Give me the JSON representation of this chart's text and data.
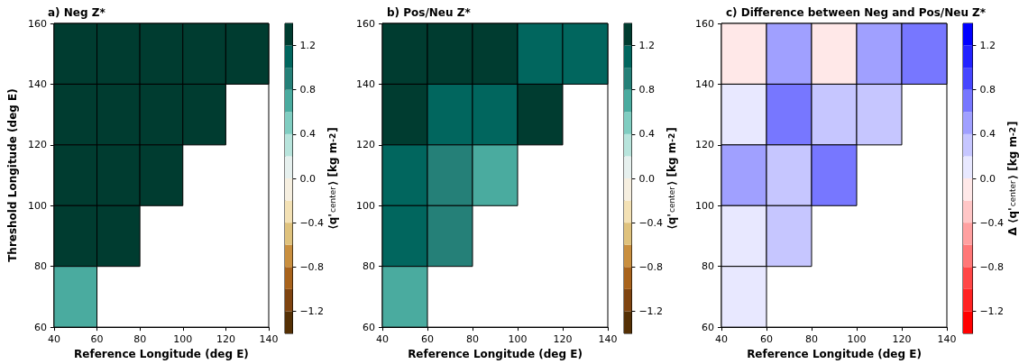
{
  "chart_data": [
    {
      "type": "heatmap",
      "title": "a) Neg Z*",
      "xlabel": "Reference Longitude (deg E)",
      "ylabel": "Threshold Longitude (deg E)",
      "clabel": "⟨q'$_{center}$⟩ [kg m$^{-2}$]",
      "x": [
        50,
        70,
        90,
        110,
        130
      ],
      "y": [
        150,
        130,
        110,
        90,
        70
      ],
      "cells": [
        [
          1.3,
          1.3,
          1.3,
          1.3,
          1.3
        ],
        [
          1.3,
          1.3,
          1.3,
          1.3,
          null
        ],
        [
          1.3,
          1.3,
          1.3,
          null,
          null
        ],
        [
          1.3,
          1.3,
          null,
          null,
          null
        ],
        [
          0.7,
          null,
          null,
          null,
          null
        ]
      ],
      "xlim": [
        40,
        140
      ],
      "xticks": [
        40,
        60,
        80,
        100,
        120,
        140
      ],
      "ylim": [
        60,
        160
      ],
      "yticks": [
        60,
        80,
        100,
        120,
        140,
        160
      ],
      "clim": [
        -1.4,
        1.4
      ],
      "cticks": [
        {
          "value": -1.2,
          "label": "−1.2"
        },
        {
          "value": -0.8,
          "label": "−0.8"
        },
        {
          "value": -0.4,
          "label": "−0.4"
        },
        {
          "value": 0,
          "label": "0.0"
        },
        0.4,
        0.8,
        1.2
      ],
      "colors": [
        "#543005",
        "#7f4410",
        "#a8631c",
        "#c98f3f",
        "#dfc27d",
        "#f3e1b5",
        "#f6efe0",
        "#e6f0ee",
        "#b8e4dc",
        "#80cdc1",
        "#4aab9f",
        "#258078",
        "#01665e",
        "#003c30"
      ]
    },
    {
      "type": "heatmap",
      "title": "b) Pos/Neu Z*",
      "xlabel": "Reference Longitude (deg E)",
      "clabel": "⟨q'$_{center}$⟩ [kg m$^{-2}$]",
      "x": [
        50,
        70,
        90,
        110,
        130
      ],
      "y": [
        150,
        130,
        110,
        90,
        70
      ],
      "cells": [
        [
          1.3,
          1.3,
          1.3,
          1.1,
          1.1
        ],
        [
          1.3,
          1.1,
          1.1,
          1.3,
          null
        ],
        [
          1.1,
          0.9,
          0.7,
          null,
          null
        ],
        [
          1.1,
          0.9,
          null,
          null,
          null
        ],
        [
          0.7,
          null,
          null,
          null,
          null
        ]
      ],
      "xlim": [
        40,
        140
      ],
      "xticks": [
        40,
        60,
        80,
        100,
        120,
        140
      ],
      "ylim": [
        60,
        160
      ],
      "yticks": [
        60,
        80,
        100,
        120,
        140,
        160
      ],
      "clim": [
        -1.4,
        1.4
      ],
      "cticks": [
        {
          "value": -1.2,
          "label": "−1.2"
        },
        {
          "value": -0.8,
          "label": "−0.8"
        },
        {
          "value": -0.4,
          "label": "−0.4"
        },
        {
          "value": 0,
          "label": "0.0"
        },
        0.4,
        0.8,
        1.2
      ],
      "colors": [
        "#543005",
        "#7f4410",
        "#a8631c",
        "#c98f3f",
        "#dfc27d",
        "#f3e1b5",
        "#f6efe0",
        "#e6f0ee",
        "#b8e4dc",
        "#80cdc1",
        "#4aab9f",
        "#258078",
        "#01665e",
        "#003c30"
      ]
    },
    {
      "type": "heatmap",
      "title": "c) Difference between Neg and Pos/Neu Z*",
      "xlabel": "Reference Longitude (deg E)",
      "clabel": "Δ ⟨q'$_{center}$⟩ [kg m$^{-2}$]",
      "x": [
        50,
        70,
        90,
        110,
        130
      ],
      "y": [
        150,
        130,
        110,
        90,
        70
      ],
      "cells": [
        [
          -0.1,
          0.5,
          -0.1,
          0.5,
          0.7
        ],
        [
          0.1,
          0.7,
          0.3,
          0.3,
          null
        ],
        [
          0.5,
          0.3,
          0.7,
          null,
          null
        ],
        [
          0.1,
          0.3,
          null,
          null,
          null
        ],
        [
          0.1,
          null,
          null,
          null,
          null
        ]
      ],
      "xlim": [
        40,
        140
      ],
      "xticks": [
        40,
        60,
        80,
        100,
        120,
        140
      ],
      "ylim": [
        60,
        160
      ],
      "yticks": [
        60,
        80,
        100,
        120,
        140,
        160
      ],
      "clim": [
        -1.4,
        1.4
      ],
      "cticks": [
        {
          "value": -1.2,
          "label": "−1.2"
        },
        {
          "value": -0.8,
          "label": "−0.8"
        },
        {
          "value": -0.4,
          "label": "−0.4"
        },
        {
          "value": 0,
          "label": "0.0"
        },
        0.4,
        0.8,
        1.2
      ],
      "colors": [
        "#ff0000",
        "#ff2222",
        "#ff4646",
        "#ff7777",
        "#ffa0a0",
        "#ffc6c6",
        "#ffe8e8",
        "#e8e8ff",
        "#c6c6ff",
        "#a0a0ff",
        "#7777ff",
        "#4646ff",
        "#2222ff",
        "#0000ff"
      ]
    }
  ]
}
